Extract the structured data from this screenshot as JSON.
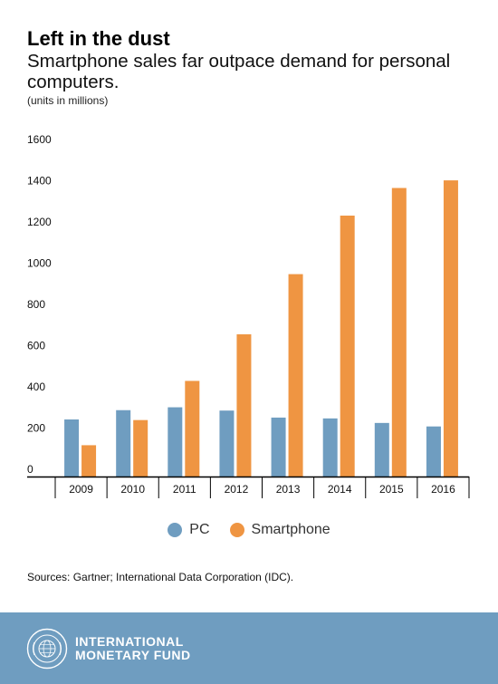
{
  "header": {
    "title": "Left in the dust",
    "subtitle": "Smartphone sales far outpace demand for personal computers.",
    "unit_note": "(units in millions)"
  },
  "chart_data": {
    "type": "bar",
    "categories": [
      "2009",
      "2010",
      "2011",
      "2012",
      "2013",
      "2014",
      "2015",
      "2016"
    ],
    "series": [
      {
        "name": "PC",
        "color": "#6f9dc0",
        "values": [
          277,
          322,
          336,
          320,
          286,
          282,
          260,
          243
        ]
      },
      {
        "name": "Smartphone",
        "color": "#ef9542",
        "values": [
          152,
          274,
          464,
          690,
          982,
          1266,
          1400,
          1437
        ]
      }
    ],
    "ylim": [
      0,
      1600
    ],
    "yticks": [
      0,
      200,
      400,
      600,
      800,
      1000,
      1200,
      1400,
      1600
    ],
    "grid": false,
    "legend_position": "bottom-center"
  },
  "legend": {
    "items": [
      {
        "label": "PC",
        "color": "#6f9dc0"
      },
      {
        "label": "Smartphone",
        "color": "#ef9542"
      }
    ]
  },
  "source": "Sources: Gartner; International Data Corporation (IDC).",
  "footer": {
    "line1": "INTERNATIONAL",
    "line2": "MONETARY FUND",
    "seal_text": "INTERNATIONAL MONETARY FUND",
    "background": "#6f9dc0"
  }
}
